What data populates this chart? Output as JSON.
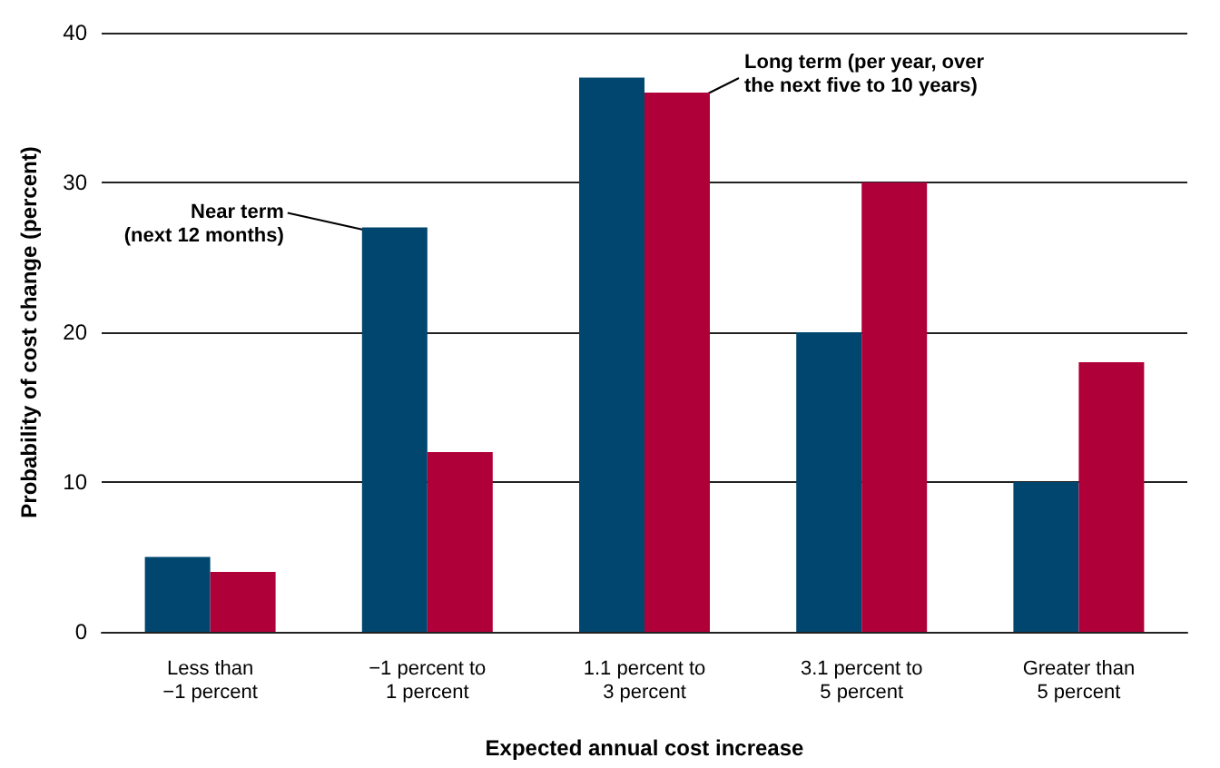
{
  "chart_data": {
    "type": "bar",
    "xlabel": "Expected annual cost increase",
    "ylabel": "Probability of cost change (percent)",
    "categories": [
      "Less than\n−1 percent",
      "−1 percent to\n1 percent",
      "1.1 percent to\n3 percent",
      "3.1 percent to\n5 percent",
      "Greater than\n5 percent"
    ],
    "series": [
      {
        "name": "Near term\n(next 12 months)",
        "color": "#00466e",
        "values": [
          5,
          27,
          37,
          20,
          10
        ]
      },
      {
        "name": "Long term (per year, over\nthe next five to 10 years)",
        "color": "#b0003a",
        "values": [
          4,
          12,
          36,
          30,
          18
        ]
      }
    ],
    "ylim": [
      0,
      40
    ],
    "yticks": [
      0,
      10,
      20,
      30,
      40
    ],
    "grid": "y",
    "legend": false
  }
}
